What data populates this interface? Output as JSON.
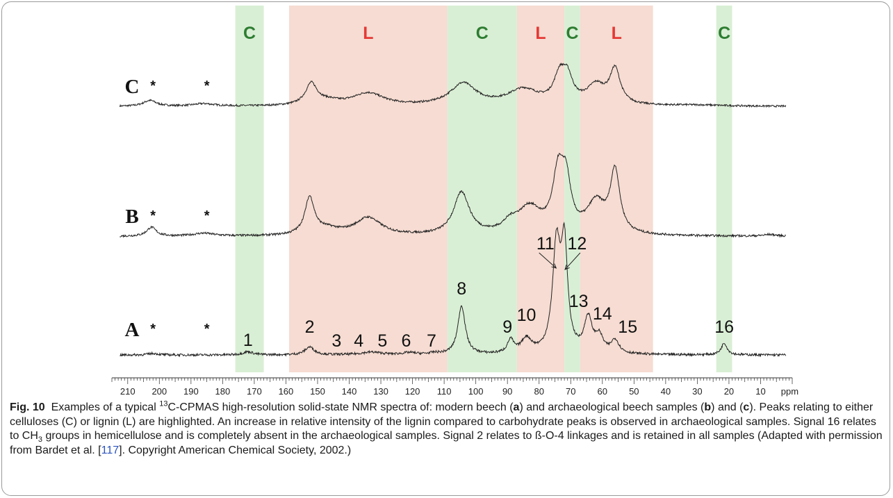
{
  "chart_data": {
    "type": "line",
    "xlabel": "ppm",
    "xlim": [
      215,
      0
    ],
    "x_ticks": [
      "210",
      "200",
      "190",
      "180",
      "170",
      "160",
      "150",
      "140",
      "130",
      "120",
      "110",
      "100",
      "90",
      "80",
      "70",
      "60",
      "50",
      "40",
      "30",
      "20",
      "10"
    ],
    "x_unit_label": "ppm",
    "highlight_colors": {
      "C": "#d9efd5",
      "L": "#f6dcd2"
    },
    "label_colors": {
      "C": "#2e7d32",
      "L": "#e53935"
    },
    "regions": [
      {
        "label": "C",
        "type": "C",
        "from": 176,
        "to": 167
      },
      {
        "label": "L",
        "type": "L",
        "from": 159,
        "to": 109
      },
      {
        "label": "C",
        "type": "C",
        "from": 109,
        "to": 87
      },
      {
        "label": "L",
        "type": "L",
        "from": 87,
        "to": 72
      },
      {
        "label": "C",
        "type": "C",
        "from": 72,
        "to": 67
      },
      {
        "label": "L",
        "type": "L",
        "from": 67,
        "to": 44
      },
      {
        "label": "C",
        "type": "C",
        "from": 24,
        "to": 19
      }
    ],
    "series": [
      {
        "name": "C",
        "baseline": 0.15,
        "peaks": [
          [
            203,
            0.28,
            2.5
          ],
          [
            186,
            0.12,
            4
          ],
          [
            152,
            1.0,
            2.2
          ],
          [
            147,
            0.2,
            5
          ],
          [
            134,
            0.6,
            6
          ],
          [
            104,
            1.05,
            5
          ],
          [
            85,
            0.75,
            6
          ],
          [
            73.5,
            1.25,
            2.2
          ],
          [
            71,
            1.1,
            2
          ],
          [
            62,
            0.9,
            3.5
          ],
          [
            56,
            1.65,
            2
          ],
          [
            30,
            0.05,
            10
          ]
        ],
        "asterisk_x": [
          202,
          185
        ]
      },
      {
        "name": "B",
        "baseline": 0.1,
        "peaks": [
          [
            202.5,
            0.38,
            1.8
          ],
          [
            186,
            0.12,
            4
          ],
          [
            152.5,
            1.55,
            1.8
          ],
          [
            147,
            0.25,
            5
          ],
          [
            134,
            0.75,
            5
          ],
          [
            104.5,
            1.8,
            3
          ],
          [
            89,
            0.4,
            3
          ],
          [
            83,
            1.1,
            4.5
          ],
          [
            74,
            2.35,
            2
          ],
          [
            71.5,
            2.0,
            1.8
          ],
          [
            62,
            1.3,
            3.5
          ],
          [
            56,
            2.6,
            1.8
          ],
          [
            7,
            0.07,
            2.5
          ]
        ],
        "asterisk_x": [
          202,
          185
        ]
      },
      {
        "name": "A",
        "baseline": 0.02,
        "peaks": [
          [
            202,
            0.06,
            2
          ],
          [
            172,
            0.12,
            2
          ],
          [
            152.5,
            0.3,
            1.8
          ],
          [
            133,
            0.1,
            4
          ],
          [
            121,
            0.07,
            2.5
          ],
          [
            113,
            0.05,
            2
          ],
          [
            104.5,
            1.85,
            1.4
          ],
          [
            89,
            0.5,
            1.2
          ],
          [
            84,
            0.55,
            2
          ],
          [
            74.5,
            4.0,
            1.5
          ],
          [
            72,
            3.8,
            1.2
          ],
          [
            64.5,
            1.3,
            1.5
          ],
          [
            61,
            0.6,
            1.5
          ],
          [
            56,
            0.5,
            1.5
          ],
          [
            21.5,
            0.45,
            1.1
          ]
        ],
        "asterisk_x": [
          202,
          185
        ],
        "peak_labels": [
          {
            "text": "1",
            "x": 172
          },
          {
            "text": "2",
            "x": 152.5
          },
          {
            "text": "3",
            "x": 144
          },
          {
            "text": "4",
            "x": 137
          },
          {
            "text": "5",
            "x": 129.5
          },
          {
            "text": "6",
            "x": 122
          },
          {
            "text": "7",
            "x": 114
          },
          {
            "text": "8",
            "x": 104.5
          },
          {
            "text": "9",
            "x": 90
          },
          {
            "text": "10",
            "x": 84
          },
          {
            "text": "11",
            "x": 78
          },
          {
            "text": "12",
            "x": 68
          },
          {
            "text": "13",
            "x": 67.5
          },
          {
            "text": "14",
            "x": 60
          },
          {
            "text": "15",
            "x": 52
          },
          {
            "text": "16",
            "x": 21.5
          }
        ]
      }
    ]
  },
  "caption": {
    "fig_label": "Fig. 10",
    "p1": "Examples of a typical ",
    "sup13": "13",
    "p2": "C-CPMAS high-resolution solid-state NMR spectra of: modern beech (",
    "a": "a",
    "p3": ") and archaeological beech samples (",
    "b": "b",
    "p4": ") and (",
    "c": "c",
    "p5": "). Peaks relating to either celluloses (C) or lignin (L) are highlighted. An increase in relative intensity of the lignin compared to carbohydrate peaks is observed in archaeological samples. Signal 16 relates to CH",
    "sub3": "3",
    "p6": " groups in hemicellulose and is completely absent in the archaeological samples. Signal 2 relates to ß-O-4 linkages and is retained in all samples (Adapted with permission from Bardet et al. [",
    "ref": "117",
    "p7": "]. Copyright American Chemical Society, 2002.)"
  }
}
